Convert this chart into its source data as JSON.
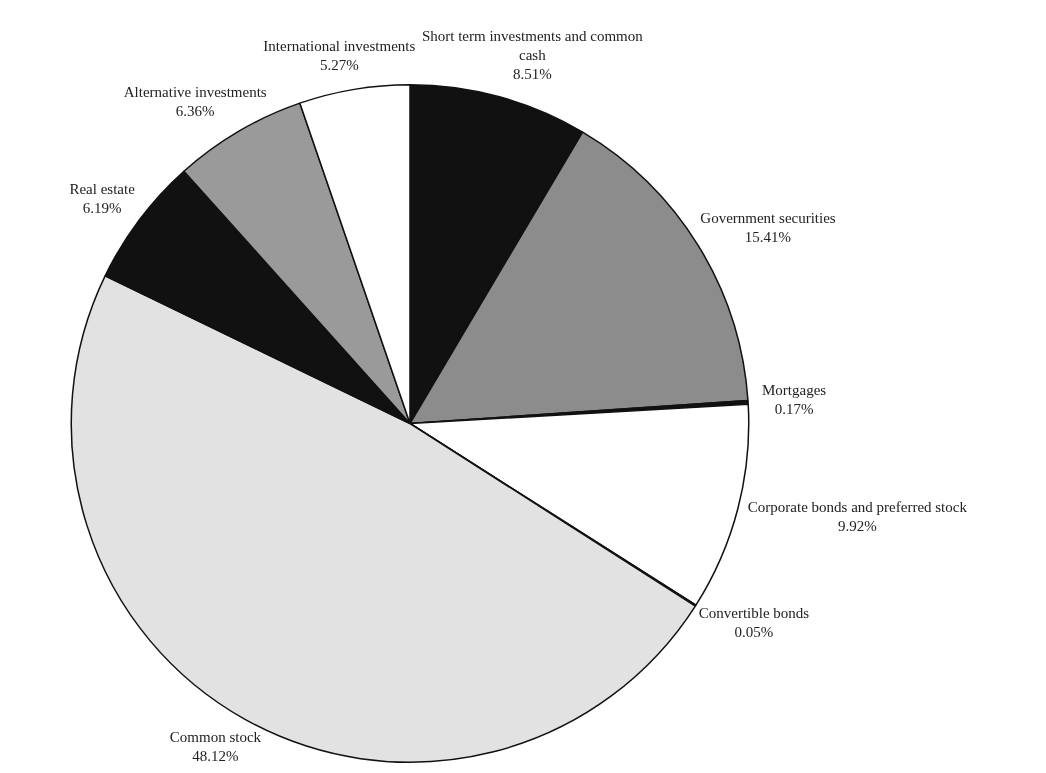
{
  "chart_data": {
    "type": "pie",
    "categories": [
      "Short term investments and common cash",
      "Government securities",
      "Mortgages",
      "Corporate bonds and preferred stock",
      "Convertible bonds",
      "Common stock",
      "Real estate",
      "Alternative investments",
      "International investments"
    ],
    "values": [
      8.51,
      15.41,
      0.17,
      9.92,
      0.05,
      48.12,
      6.19,
      6.36,
      5.27
    ],
    "value_labels": [
      "8.51%",
      "15.41%",
      "0.17%",
      "9.92%",
      "0.05%",
      "48.12%",
      "6.19%",
      "6.36%",
      "5.27%"
    ],
    "colors": [
      "#111111",
      "#8c8c8c",
      "#111111",
      "#ffffff",
      "#111111",
      "#e2e2e2",
      "#111111",
      "#9a9a9a",
      "#ffffff"
    ],
    "legend": false
  }
}
